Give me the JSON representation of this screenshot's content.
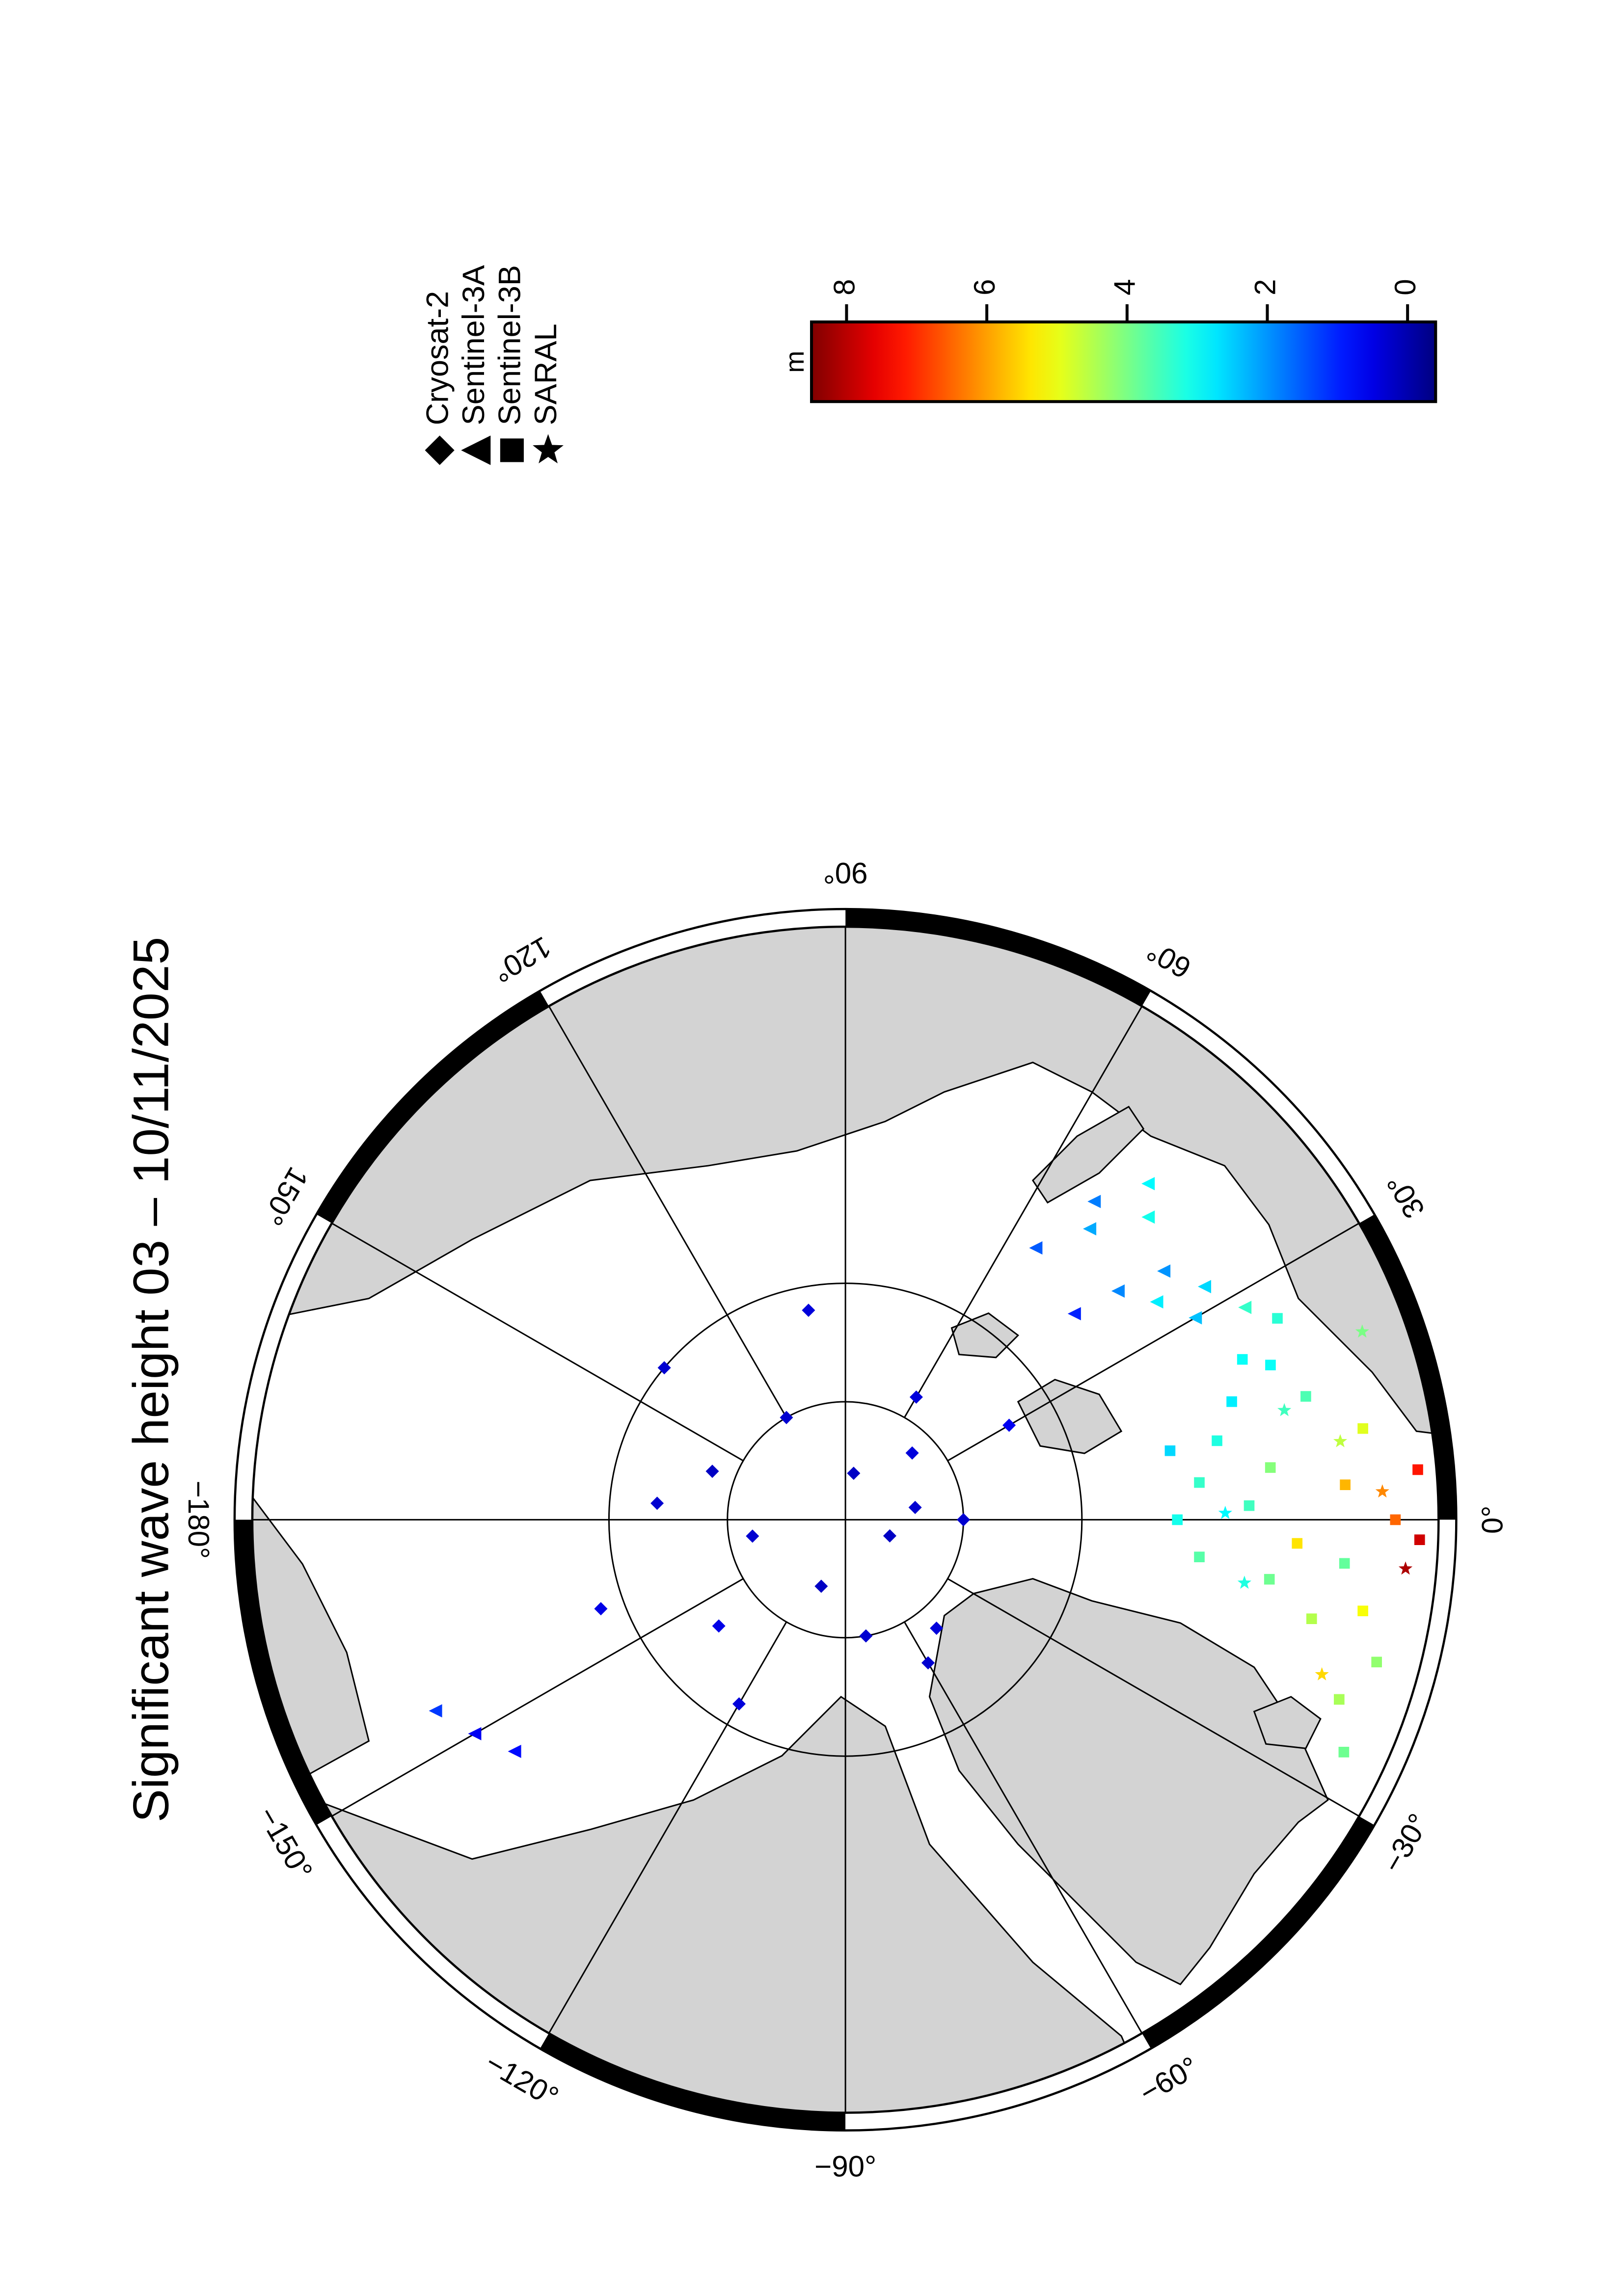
{
  "chart_data": {
    "type": "polar-map",
    "title": "Significant wave height 03 – 10/11/2025",
    "meridians": [
      {
        "value": 0,
        "label": "0°"
      },
      {
        "value": 30,
        "label": "30°"
      },
      {
        "value": 60,
        "label": "60°"
      },
      {
        "value": 90,
        "label": "90°"
      },
      {
        "value": 120,
        "label": "120°"
      },
      {
        "value": 150,
        "label": "150°"
      },
      {
        "value": 180,
        "label": "−180°"
      },
      {
        "value": -150,
        "label": "−150°"
      },
      {
        "value": -120,
        "label": "−120°"
      },
      {
        "value": -90,
        "label": "−90°"
      },
      {
        "value": -60,
        "label": "−60°"
      },
      {
        "value": -30,
        "label": "−30°"
      }
    ],
    "parallels": [
      80,
      85
    ],
    "colorbar_label": "m",
    "clim": [
      -0.4,
      8.5
    ],
    "cticks": [
      0,
      2,
      4,
      6,
      8
    ],
    "colormap": "jet",
    "series": [
      {
        "name": "Cryosat-2",
        "marker": "diamond",
        "lon": [
          10,
          45,
          80,
          120,
          160,
          -170,
          -140,
          -110,
          -80,
          -50,
          -20,
          30,
          100,
          140,
          -160,
          -120,
          -60,
          0,
          60,
          175
        ],
        "lat": [
          87,
          86,
          88,
          85,
          84,
          86,
          83,
          87,
          85,
          84,
          88,
          82,
          81,
          80,
          79,
          81,
          83,
          85,
          84,
          82
        ],
        "values": [
          0.3,
          0.4,
          0.2,
          0.3,
          0.2,
          0.3,
          0.5,
          0.2,
          0.3,
          0.4,
          0.2,
          0.6,
          0.4,
          0.3,
          0.5,
          0.4,
          0.3,
          0.3,
          0.4,
          0.3
        ]
      },
      {
        "name": "Sentinel-3A",
        "marker": "triangle",
        "lon": [
          30,
          35,
          40,
          45,
          50,
          55,
          28,
          33,
          38,
          -150,
          -145,
          -155,
          42,
          48,
          52
        ],
        "lat": [
          73,
          74,
          75,
          72,
          74,
          76,
          71,
          72,
          73,
          72,
          73,
          71,
          77,
          71,
          73
        ],
        "values": [
          2.4,
          2.8,
          1.9,
          3.1,
          2.2,
          1.5,
          3.4,
          2.6,
          2.0,
          0.6,
          0.8,
          1.2,
          1.0,
          2.9,
          1.8
        ]
      },
      {
        "name": "Sentinel-3B",
        "marker": "square",
        "lon": [
          -15,
          -10,
          -5,
          0,
          5,
          10,
          15,
          20,
          25,
          -12,
          -8,
          -3,
          2,
          7,
          12,
          17,
          22,
          -6,
          0,
          6,
          12,
          -2,
          4,
          -20,
          -25
        ],
        "lat": [
          67,
          68,
          69,
          67,
          66,
          68,
          70,
          71,
          70,
          70,
          72,
          71,
          73,
          72,
          74,
          73,
          72,
          75,
          76,
          75,
          76,
          66,
          69,
          68,
          67
        ],
        "values": [
          4.2,
          5.1,
          3.8,
          6.5,
          7.2,
          4.9,
          3.6,
          3.0,
          3.3,
          4.5,
          3.9,
          5.4,
          3.5,
          4.1,
          3.2,
          2.8,
          3.0,
          3.7,
          3.1,
          3.4,
          2.6,
          7.8,
          5.8,
          4.4,
          3.9
        ]
      },
      {
        "name": "SARAL",
        "marker": "star",
        "lon": [
          -5,
          3,
          9,
          14,
          -18,
          20,
          -9,
          1
        ],
        "lat": [
          66.5,
          67.5,
          69,
          71,
          69,
          67,
          73,
          74
        ],
        "values": [
          8.1,
          6.2,
          4.6,
          3.5,
          5.5,
          4.0,
          3.2,
          2.9
        ]
      }
    ]
  }
}
